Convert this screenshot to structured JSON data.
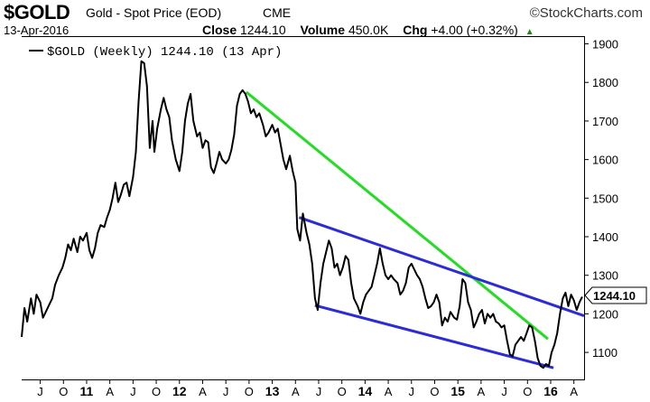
{
  "header": {
    "symbol": "$GOLD",
    "description": "Gold - Spot Price (EOD)",
    "exchange": "CME",
    "brand": "©StockCharts.com",
    "date": "13-Apr-2016",
    "close_label": "Close",
    "close_value": "1244.10",
    "volume_label": "Volume",
    "volume_value": "450.0K",
    "chg_label": "Chg",
    "chg_value": "+4.00 (+0.32%)",
    "chg_arrow": "▲"
  },
  "colors": {
    "price_line": "#000000",
    "upper_trendline": "#2b2bd8",
    "lower_trendline": "#2b2bd8",
    "long_trendline": "#22dd22",
    "axis": "#000000",
    "up_arrow": "#1a8a1a"
  },
  "chart_data": {
    "type": "line",
    "legend": "$GOLD (Weekly) 1244.10 (13 Apr)",
    "legend_position": "top-left",
    "last_value_label": "1244.10",
    "ylim": [
      1030,
      1920
    ],
    "yticks": [
      1100,
      1200,
      1300,
      1400,
      1500,
      1600,
      1700,
      1800,
      1900
    ],
    "xlim": [
      2010.3,
      2016.36
    ],
    "xticks": [
      {
        "x": 2010.5,
        "label": "J"
      },
      {
        "x": 2010.75,
        "label": "O"
      },
      {
        "x": 2011.0,
        "label": "11"
      },
      {
        "x": 2011.25,
        "label": "A"
      },
      {
        "x": 2011.5,
        "label": "J"
      },
      {
        "x": 2011.75,
        "label": "O"
      },
      {
        "x": 2012.0,
        "label": "12"
      },
      {
        "x": 2012.25,
        "label": "A"
      },
      {
        "x": 2012.5,
        "label": "J"
      },
      {
        "x": 2012.75,
        "label": "O"
      },
      {
        "x": 2013.0,
        "label": "13"
      },
      {
        "x": 2013.25,
        "label": "A"
      },
      {
        "x": 2013.5,
        "label": "J"
      },
      {
        "x": 2013.75,
        "label": "O"
      },
      {
        "x": 2014.0,
        "label": "14"
      },
      {
        "x": 2014.25,
        "label": "A"
      },
      {
        "x": 2014.5,
        "label": "J"
      },
      {
        "x": 2014.75,
        "label": "O"
      },
      {
        "x": 2015.0,
        "label": "15"
      },
      {
        "x": 2015.25,
        "label": "A"
      },
      {
        "x": 2015.5,
        "label": "J"
      },
      {
        "x": 2015.75,
        "label": "O"
      },
      {
        "x": 2016.0,
        "label": "16"
      },
      {
        "x": 2016.25,
        "label": "A"
      }
    ],
    "grid": false,
    "series": [
      {
        "name": "$GOLD (Weekly)",
        "points": [
          [
            2010.3,
            1140
          ],
          [
            2010.33,
            1215
          ],
          [
            2010.36,
            1180
          ],
          [
            2010.4,
            1240
          ],
          [
            2010.43,
            1200
          ],
          [
            2010.46,
            1250
          ],
          [
            2010.5,
            1230
          ],
          [
            2010.53,
            1190
          ],
          [
            2010.56,
            1205
          ],
          [
            2010.6,
            1225
          ],
          [
            2010.63,
            1240
          ],
          [
            2010.66,
            1275
          ],
          [
            2010.7,
            1300
          ],
          [
            2010.74,
            1320
          ],
          [
            2010.77,
            1345
          ],
          [
            2010.8,
            1380
          ],
          [
            2010.83,
            1365
          ],
          [
            2010.86,
            1395
          ],
          [
            2010.9,
            1360
          ],
          [
            2010.93,
            1400
          ],
          [
            2010.96,
            1390
          ],
          [
            2011.0,
            1410
          ],
          [
            2011.03,
            1365
          ],
          [
            2011.06,
            1345
          ],
          [
            2011.09,
            1370
          ],
          [
            2011.12,
            1410
          ],
          [
            2011.15,
            1430
          ],
          [
            2011.19,
            1425
          ],
          [
            2011.22,
            1450
          ],
          [
            2011.25,
            1470
          ],
          [
            2011.28,
            1500
          ],
          [
            2011.31,
            1540
          ],
          [
            2011.34,
            1490
          ],
          [
            2011.37,
            1510
          ],
          [
            2011.4,
            1535
          ],
          [
            2011.43,
            1540
          ],
          [
            2011.46,
            1505
          ],
          [
            2011.5,
            1555
          ],
          [
            2011.53,
            1620
          ],
          [
            2011.56,
            1750
          ],
          [
            2011.59,
            1855
          ],
          [
            2011.62,
            1850
          ],
          [
            2011.65,
            1790
          ],
          [
            2011.68,
            1630
          ],
          [
            2011.71,
            1700
          ],
          [
            2011.73,
            1620
          ],
          [
            2011.76,
            1680
          ],
          [
            2011.8,
            1730
          ],
          [
            2011.83,
            1760
          ],
          [
            2011.86,
            1730
          ],
          [
            2011.89,
            1710
          ],
          [
            2011.92,
            1650
          ],
          [
            2011.96,
            1600
          ],
          [
            2012.0,
            1570
          ],
          [
            2012.03,
            1620
          ],
          [
            2012.06,
            1700
          ],
          [
            2012.09,
            1745
          ],
          [
            2012.12,
            1770
          ],
          [
            2012.15,
            1700
          ],
          [
            2012.19,
            1660
          ],
          [
            2012.22,
            1670
          ],
          [
            2012.25,
            1630
          ],
          [
            2012.28,
            1650
          ],
          [
            2012.31,
            1645
          ],
          [
            2012.34,
            1580
          ],
          [
            2012.37,
            1565
          ],
          [
            2012.4,
            1590
          ],
          [
            2012.43,
            1620
          ],
          [
            2012.46,
            1600
          ],
          [
            2012.5,
            1590
          ],
          [
            2012.53,
            1600
          ],
          [
            2012.56,
            1625
          ],
          [
            2012.59,
            1665
          ],
          [
            2012.62,
            1740
          ],
          [
            2012.65,
            1770
          ],
          [
            2012.68,
            1780
          ],
          [
            2012.71,
            1770
          ],
          [
            2012.74,
            1750
          ],
          [
            2012.77,
            1720
          ],
          [
            2012.8,
            1730
          ],
          [
            2012.83,
            1710
          ],
          [
            2012.86,
            1720
          ],
          [
            2012.9,
            1690
          ],
          [
            2012.93,
            1660
          ],
          [
            2012.96,
            1670
          ],
          [
            2013.0,
            1690
          ],
          [
            2013.03,
            1670
          ],
          [
            2013.06,
            1680
          ],
          [
            2013.09,
            1640
          ],
          [
            2013.12,
            1600
          ],
          [
            2013.15,
            1575
          ],
          [
            2013.19,
            1610
          ],
          [
            2013.22,
            1570
          ],
          [
            2013.25,
            1540
          ],
          [
            2013.27,
            1420
          ],
          [
            2013.3,
            1390
          ],
          [
            2013.33,
            1460
          ],
          [
            2013.37,
            1410
          ],
          [
            2013.4,
            1380
          ],
          [
            2013.43,
            1330
          ],
          [
            2013.46,
            1240
          ],
          [
            2013.49,
            1210
          ],
          [
            2013.52,
            1280
          ],
          [
            2013.55,
            1330
          ],
          [
            2013.58,
            1360
          ],
          [
            2013.61,
            1390
          ],
          [
            2013.64,
            1370
          ],
          [
            2013.67,
            1320
          ],
          [
            2013.7,
            1330
          ],
          [
            2013.73,
            1300
          ],
          [
            2013.76,
            1320
          ],
          [
            2013.79,
            1350
          ],
          [
            2013.82,
            1340
          ],
          [
            2013.85,
            1280
          ],
          [
            2013.88,
            1240
          ],
          [
            2013.92,
            1220
          ],
          [
            2013.95,
            1200
          ],
          [
            2013.98,
            1230
          ],
          [
            2014.01,
            1250
          ],
          [
            2014.04,
            1260
          ],
          [
            2014.07,
            1270
          ],
          [
            2014.1,
            1300
          ],
          [
            2014.13,
            1330
          ],
          [
            2014.16,
            1370
          ],
          [
            2014.19,
            1330
          ],
          [
            2014.22,
            1300
          ],
          [
            2014.25,
            1290
          ],
          [
            2014.28,
            1300
          ],
          [
            2014.31,
            1290
          ],
          [
            2014.35,
            1280
          ],
          [
            2014.38,
            1250
          ],
          [
            2014.41,
            1260
          ],
          [
            2014.44,
            1280
          ],
          [
            2014.47,
            1320
          ],
          [
            2014.5,
            1330
          ],
          [
            2014.53,
            1315
          ],
          [
            2014.56,
            1300
          ],
          [
            2014.59,
            1290
          ],
          [
            2014.62,
            1270
          ],
          [
            2014.65,
            1240
          ],
          [
            2014.68,
            1215
          ],
          [
            2014.71,
            1220
          ],
          [
            2014.74,
            1230
          ],
          [
            2014.77,
            1250
          ],
          [
            2014.8,
            1230
          ],
          [
            2014.83,
            1170
          ],
          [
            2014.86,
            1190
          ],
          [
            2014.89,
            1180
          ],
          [
            2014.92,
            1205
          ],
          [
            2014.96,
            1190
          ],
          [
            2014.99,
            1185
          ],
          [
            2015.02,
            1220
          ],
          [
            2015.05,
            1290
          ],
          [
            2015.08,
            1280
          ],
          [
            2015.11,
            1230
          ],
          [
            2015.14,
            1210
          ],
          [
            2015.17,
            1165
          ],
          [
            2015.2,
            1180
          ],
          [
            2015.23,
            1200
          ],
          [
            2015.26,
            1210
          ],
          [
            2015.29,
            1175
          ],
          [
            2015.32,
            1200
          ],
          [
            2015.35,
            1190
          ],
          [
            2015.38,
            1200
          ],
          [
            2015.41,
            1180
          ],
          [
            2015.44,
            1175
          ],
          [
            2015.47,
            1165
          ],
          [
            2015.5,
            1170
          ],
          [
            2015.53,
            1130
          ],
          [
            2015.56,
            1095
          ],
          [
            2015.59,
            1090
          ],
          [
            2015.62,
            1120
          ],
          [
            2015.65,
            1130
          ],
          [
            2015.68,
            1140
          ],
          [
            2015.71,
            1130
          ],
          [
            2015.74,
            1150
          ],
          [
            2015.77,
            1170
          ],
          [
            2015.8,
            1165
          ],
          [
            2015.83,
            1130
          ],
          [
            2015.86,
            1085
          ],
          [
            2015.89,
            1065
          ],
          [
            2015.92,
            1060
          ],
          [
            2015.95,
            1070
          ],
          [
            2015.98,
            1065
          ],
          [
            2016.01,
            1100
          ],
          [
            2016.04,
            1120
          ],
          [
            2016.07,
            1150
          ],
          [
            2016.1,
            1200
          ],
          [
            2016.13,
            1240
          ],
          [
            2016.16,
            1255
          ],
          [
            2016.19,
            1220
          ],
          [
            2016.22,
            1250
          ],
          [
            2016.25,
            1235
          ],
          [
            2016.28,
            1210
          ],
          [
            2016.31,
            1230
          ],
          [
            2016.34,
            1244.1
          ]
        ]
      }
    ],
    "trendlines": [
      {
        "id": "long",
        "points": [
          [
            2012.72,
            1775
          ],
          [
            2015.97,
            1135
          ]
        ]
      },
      {
        "id": "upper",
        "points": [
          [
            2013.29,
            1450
          ],
          [
            2016.36,
            1195
          ]
        ]
      },
      {
        "id": "lower",
        "points": [
          [
            2013.46,
            1222
          ],
          [
            2016.03,
            1060
          ]
        ]
      }
    ]
  }
}
